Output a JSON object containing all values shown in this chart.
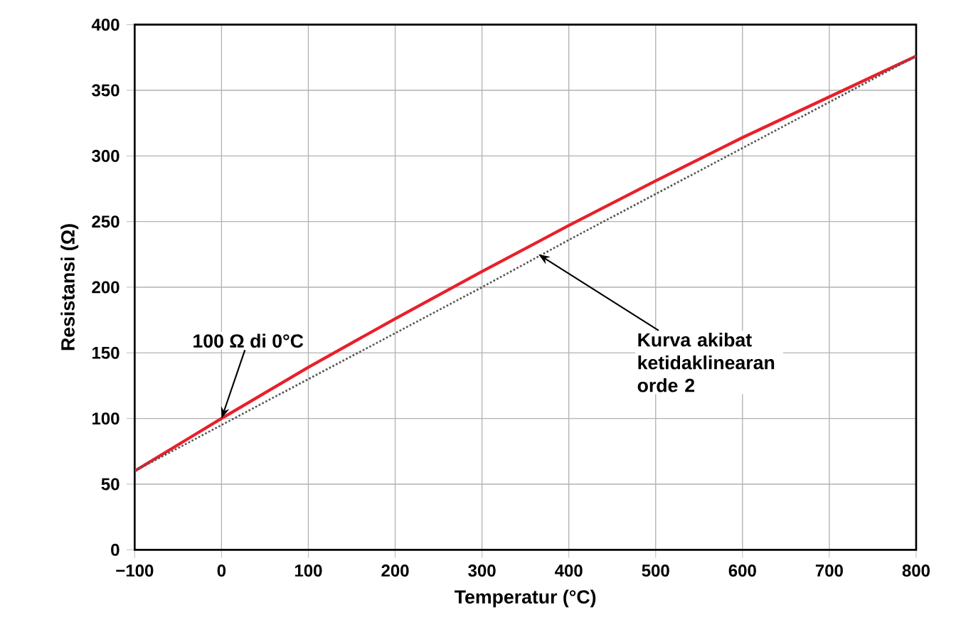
{
  "chart_data": {
    "type": "line",
    "xlabel": "Temperatur  (°C)",
    "ylabel": "Resistansi  (Ω)",
    "x": [
      -100,
      0,
      100,
      200,
      300,
      400,
      500,
      600,
      700,
      800
    ],
    "series": [
      {
        "color": "#e8202a",
        "line_style": "solid",
        "values": [
          60,
          100,
          139,
          176,
          212,
          247,
          281,
          314,
          345,
          376
        ]
      },
      {
        "color": "#555555",
        "line_style": "dotted",
        "values": [
          60,
          95,
          130,
          165,
          200,
          236,
          271,
          306,
          341,
          376
        ]
      }
    ],
    "xlim": [
      -100,
      800
    ],
    "ylim": [
      0,
      400
    ],
    "xticks": [
      {
        "value": -100,
        "label": "−100"
      },
      0,
      100,
      200,
      300,
      400,
      500,
      600,
      700,
      800
    ],
    "yticks": [
      0,
      50,
      100,
      150,
      200,
      250,
      300,
      350,
      400
    ],
    "grid": true,
    "marker": "none",
    "annotations": [
      {
        "text": "100 Ω di 0°C",
        "x": 0,
        "y": 100
      },
      {
        "text": "Kurva akibat ketidaklinearan orde 2",
        "x": 365,
        "y": 225
      }
    ]
  }
}
